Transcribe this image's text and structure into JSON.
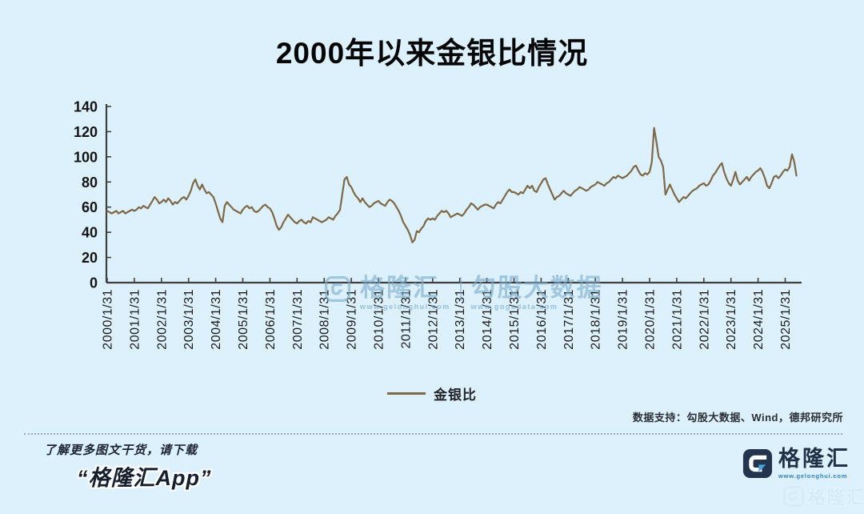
{
  "title": "2000年以来金银比情况",
  "colors": {
    "background": "#ddf1fc",
    "line": "#7d6848",
    "axis": "#3f3f3f",
    "logo_navy": "#22344e",
    "logo_blue": "#4aa3da"
  },
  "chart_data": {
    "type": "line",
    "title": "2000年以来金银比情况",
    "series_name": "金银比",
    "x_interval": "monthly",
    "x_start": "2000-01",
    "x_tick_labels": [
      "2000/1/31",
      "2001/1/31",
      "2002/1/31",
      "2003/1/31",
      "2004/1/31",
      "2005/1/31",
      "2006/1/31",
      "2007/1/31",
      "2008/1/31",
      "2009/1/31",
      "2010/1/31",
      "2011/1/31",
      "2012/1/31",
      "2013/1/31",
      "2014/1/31",
      "2015/1/31",
      "2016/1/31",
      "2017/1/31",
      "2018/1/31",
      "2019/1/31",
      "2020/1/31",
      "2021/1/31",
      "2022/1/31",
      "2023/1/31",
      "2024/1/31",
      "2025/1/31"
    ],
    "ylim": [
      0,
      140
    ],
    "yticks": [
      0,
      20,
      40,
      60,
      80,
      100,
      120,
      140
    ],
    "grid": false,
    "legend_position": "bottom-center",
    "line_color": "#7d6848",
    "values": [
      57,
      56,
      55,
      56,
      57,
      55,
      56,
      57,
      55,
      56,
      57,
      58,
      57,
      58,
      60,
      59,
      61,
      60,
      59,
      62,
      65,
      68,
      66,
      63,
      64,
      66,
      64,
      67,
      65,
      62,
      64,
      63,
      65,
      67,
      68,
      66,
      69,
      73,
      79,
      82,
      77,
      74,
      78,
      74,
      71,
      72,
      70,
      68,
      63,
      57,
      51,
      48,
      61,
      64,
      62,
      60,
      58,
      57,
      56,
      55,
      58,
      60,
      61,
      59,
      60,
      57,
      56,
      57,
      59,
      61,
      62,
      60,
      59,
      56,
      51,
      45,
      42,
      44,
      48,
      51,
      54,
      52,
      50,
      48,
      47,
      49,
      50,
      48,
      47,
      49,
      48,
      52,
      51,
      50,
      49,
      48,
      49,
      50,
      52,
      51,
      50,
      53,
      55,
      58,
      70,
      82,
      84,
      78,
      76,
      72,
      69,
      67,
      64,
      67,
      64,
      62,
      60,
      61,
      63,
      64,
      65,
      63,
      62,
      61,
      64,
      66,
      65,
      63,
      60,
      57,
      53,
      48,
      45,
      42,
      38,
      32,
      34,
      41,
      40,
      43,
      45,
      49,
      51,
      50,
      51,
      50,
      53,
      55,
      57,
      56,
      57,
      55,
      52,
      53,
      54,
      55,
      54,
      53,
      55,
      58,
      60,
      63,
      62,
      60,
      58,
      60,
      61,
      62,
      62,
      61,
      60,
      59,
      62,
      64,
      63,
      66,
      69,
      72,
      74,
      72,
      72,
      71,
      70,
      72,
      71,
      74,
      77,
      75,
      77,
      73,
      72,
      76,
      79,
      82,
      83,
      78,
      74,
      70,
      66,
      68,
      69,
      71,
      73,
      71,
      70,
      69,
      71,
      73,
      74,
      76,
      75,
      74,
      73,
      74,
      76,
      77,
      78,
      80,
      79,
      78,
      77,
      79,
      80,
      82,
      84,
      83,
      85,
      84,
      83,
      84,
      85,
      87,
      89,
      92,
      93,
      89,
      86,
      85,
      87,
      86,
      88,
      96,
      123,
      112,
      100,
      97,
      92,
      70,
      74,
      78,
      74,
      70,
      67,
      64,
      66,
      68,
      67,
      69,
      71,
      73,
      74,
      75,
      77,
      78,
      79,
      77,
      78,
      81,
      85,
      87,
      90,
      93,
      95,
      88,
      83,
      79,
      77,
      82,
      88,
      81,
      78,
      80,
      82,
      84,
      81,
      84,
      86,
      88,
      89,
      91,
      88,
      83,
      77,
      75,
      79,
      84,
      85,
      83,
      85,
      88,
      90,
      89,
      92,
      102,
      96,
      85
    ]
  },
  "legend": {
    "label": "金银比"
  },
  "source_note": "数据支持：勾股大数据、Wind，德邦研究所",
  "watermark": {
    "brand": "格隆汇",
    "brand_url": "www.gelonghui.com",
    "partner": "勾股大数据",
    "partner_url": "www.gogudata.com"
  },
  "footer": {
    "promo_line1": "了解更多图文干货，请下载",
    "promo_line2": "“格隆汇App”",
    "logo_text": "格隆汇",
    "logo_url": "www.gelonghui.com",
    "corner_brand": "格隆汇"
  }
}
